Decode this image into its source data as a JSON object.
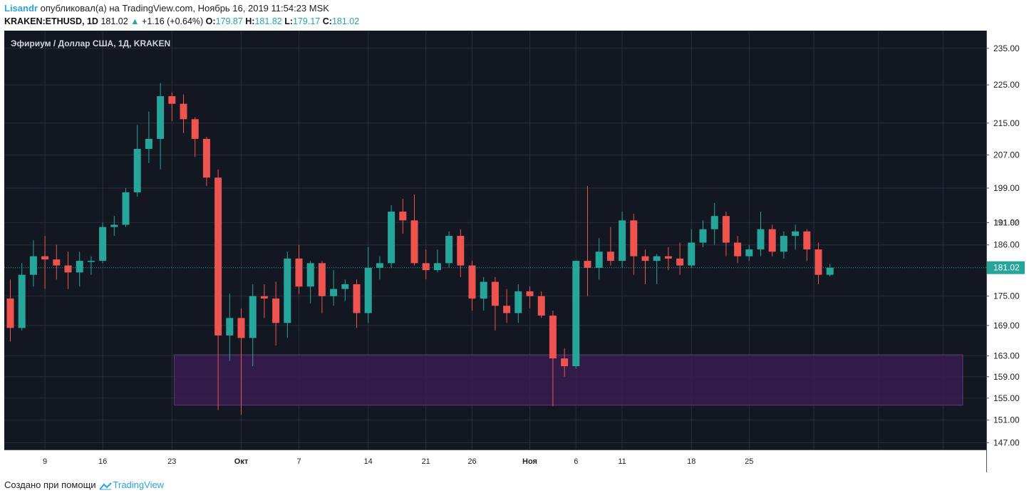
{
  "header": {
    "author": "Lisandr",
    "published_text": "опубликовал(а) на TradingView.com, Ноябрь 16, 2019 11:54:23 MSK",
    "symbol": "KRAKEN:ETHUSD, 1D",
    "last": "181.02",
    "change_arrow": "▲",
    "change": "+1.16 (+0.64%)",
    "o_label": "O:",
    "o_value": "179.87",
    "h_label": "H:",
    "h_value": "181.82",
    "l_label": "L:",
    "l_value": "179.17",
    "c_label": "C:",
    "c_value": "181.02"
  },
  "footer": {
    "created_with": "Создано при помощи",
    "brand": "TradingView"
  },
  "colors": {
    "background": "#131722",
    "grid": "#2a2e39",
    "up": "#26a69a",
    "down": "#ef5350",
    "zone_fill": "#3a1c50",
    "zone_border": "#5c3a78",
    "axis_text": "#d1d4dc",
    "price_line": "#26a69a"
  },
  "chart_data": {
    "type": "candlestick",
    "title": "Эфириум / Доллар США, 1Д, KRAKEN",
    "y_ticks": [
      "235.00",
      "225.00",
      "215.00",
      "207.00",
      "199.00",
      "191.00",
      "186.00",
      "175.00",
      "169.00",
      "163.00",
      "159.00",
      "155.00",
      "151.00",
      "147.00"
    ],
    "y_tick_values": [
      235,
      225,
      215,
      207,
      199,
      191,
      186,
      175,
      169,
      163,
      159,
      155,
      151,
      147
    ],
    "ylim": [
      145.8,
      240
    ],
    "scale": "log",
    "x_ticks": [
      {
        "label": "9",
        "index": 3
      },
      {
        "label": "16",
        "index": 8
      },
      {
        "label": "23",
        "index": 14
      },
      {
        "label": "Окт",
        "index": 20
      },
      {
        "label": "7",
        "index": 25
      },
      {
        "label": "14",
        "index": 31
      },
      {
        "label": "21",
        "index": 36
      },
      {
        "label": "26",
        "index": 40
      },
      {
        "label": "Ноя",
        "index": 45
      },
      {
        "label": "6",
        "index": 49
      },
      {
        "label": "11",
        "index": 53
      },
      {
        "label": "18",
        "index": 59
      },
      {
        "label": "25",
        "index": 64
      }
    ],
    "last_price_label": "181.02",
    "overlap_label": "181.82",
    "last_price": 181.02,
    "zone": {
      "from_index": 14.2,
      "to_index": 82.5,
      "low": 153.7,
      "high": 163.2
    },
    "candles": [
      {
        "o": 174.5,
        "h": 178.5,
        "l": 165.8,
        "c": 168.5
      },
      {
        "o": 168.5,
        "h": 182.0,
        "l": 168.0,
        "c": 179.5
      },
      {
        "o": 179.5,
        "h": 187.0,
        "l": 177.0,
        "c": 183.5
      },
      {
        "o": 183.5,
        "h": 188.0,
        "l": 176.5,
        "c": 182.8
      },
      {
        "o": 182.8,
        "h": 186.0,
        "l": 178.5,
        "c": 181.5
      },
      {
        "o": 181.5,
        "h": 184.5,
        "l": 176.5,
        "c": 180.0
      },
      {
        "o": 180.0,
        "h": 184.5,
        "l": 177.0,
        "c": 182.5
      },
      {
        "o": 182.5,
        "h": 183.5,
        "l": 179.5,
        "c": 182.5
      },
      {
        "o": 182.5,
        "h": 191.0,
        "l": 182.0,
        "c": 190.0
      },
      {
        "o": 190.0,
        "h": 192.5,
        "l": 188.0,
        "c": 190.5
      },
      {
        "o": 190.5,
        "h": 199.0,
        "l": 190.0,
        "c": 198.0
      },
      {
        "o": 198.0,
        "h": 214.5,
        "l": 197.0,
        "c": 208.5
      },
      {
        "o": 208.5,
        "h": 218.0,
        "l": 205.0,
        "c": 211.0
      },
      {
        "o": 211.0,
        "h": 225.5,
        "l": 203.5,
        "c": 222.0
      },
      {
        "o": 222.0,
        "h": 223.0,
        "l": 215.5,
        "c": 220.0
      },
      {
        "o": 220.0,
        "h": 222.5,
        "l": 212.5,
        "c": 216.0
      },
      {
        "o": 216.0,
        "h": 216.5,
        "l": 206.5,
        "c": 211.0
      },
      {
        "o": 211.0,
        "h": 211.5,
        "l": 199.5,
        "c": 201.5
      },
      {
        "o": 201.5,
        "h": 203.5,
        "l": 152.8,
        "c": 167.0
      },
      {
        "o": 167.0,
        "h": 175.5,
        "l": 162.0,
        "c": 170.5
      },
      {
        "o": 170.5,
        "h": 172.5,
        "l": 152.0,
        "c": 166.5
      },
      {
        "o": 166.5,
        "h": 177.5,
        "l": 161.0,
        "c": 175.0
      },
      {
        "o": 175.0,
        "h": 177.5,
        "l": 170.5,
        "c": 174.5
      },
      {
        "o": 174.5,
        "h": 178.0,
        "l": 165.0,
        "c": 169.5
      },
      {
        "o": 169.5,
        "h": 184.5,
        "l": 166.5,
        "c": 183.0
      },
      {
        "o": 183.0,
        "h": 186.0,
        "l": 175.5,
        "c": 177.0
      },
      {
        "o": 177.0,
        "h": 182.5,
        "l": 173.5,
        "c": 182.0
      },
      {
        "o": 182.0,
        "h": 182.5,
        "l": 171.5,
        "c": 175.0
      },
      {
        "o": 175.0,
        "h": 180.5,
        "l": 173.0,
        "c": 176.5
      },
      {
        "o": 176.5,
        "h": 178.5,
        "l": 174.0,
        "c": 177.5
      },
      {
        "o": 177.5,
        "h": 178.5,
        "l": 168.5,
        "c": 171.5
      },
      {
        "o": 171.5,
        "h": 185.5,
        "l": 169.5,
        "c": 181.0
      },
      {
        "o": 181.0,
        "h": 183.5,
        "l": 178.5,
        "c": 182.0
      },
      {
        "o": 182.0,
        "h": 195.0,
        "l": 181.0,
        "c": 193.5
      },
      {
        "o": 193.5,
        "h": 196.5,
        "l": 188.5,
        "c": 191.5
      },
      {
        "o": 191.5,
        "h": 197.5,
        "l": 181.5,
        "c": 182.0
      },
      {
        "o": 182.0,
        "h": 185.0,
        "l": 178.5,
        "c": 180.5
      },
      {
        "o": 180.5,
        "h": 185.0,
        "l": 180.0,
        "c": 182.0
      },
      {
        "o": 182.0,
        "h": 189.0,
        "l": 181.0,
        "c": 188.0
      },
      {
        "o": 188.0,
        "h": 189.5,
        "l": 179.0,
        "c": 181.5
      },
      {
        "o": 181.5,
        "h": 182.5,
        "l": 172.0,
        "c": 174.5
      },
      {
        "o": 174.5,
        "h": 179.0,
        "l": 172.0,
        "c": 178.0
      },
      {
        "o": 178.0,
        "h": 179.0,
        "l": 168.0,
        "c": 173.0
      },
      {
        "o": 173.0,
        "h": 176.5,
        "l": 169.5,
        "c": 171.5
      },
      {
        "o": 171.5,
        "h": 177.5,
        "l": 169.5,
        "c": 176.0
      },
      {
        "o": 176.0,
        "h": 177.0,
        "l": 172.5,
        "c": 175.0
      },
      {
        "o": 175.0,
        "h": 176.0,
        "l": 170.5,
        "c": 171.0
      },
      {
        "o": 171.0,
        "h": 172.0,
        "l": 153.5,
        "c": 162.5
      },
      {
        "o": 162.5,
        "h": 164.5,
        "l": 159.0,
        "c": 161.0
      },
      {
        "o": 161.0,
        "h": 182.5,
        "l": 160.5,
        "c": 182.5
      },
      {
        "o": 182.5,
        "h": 199.5,
        "l": 175.0,
        "c": 181.0
      },
      {
        "o": 181.0,
        "h": 187.5,
        "l": 178.5,
        "c": 184.5
      },
      {
        "o": 184.5,
        "h": 190.0,
        "l": 181.5,
        "c": 182.5
      },
      {
        "o": 182.5,
        "h": 193.5,
        "l": 181.0,
        "c": 191.5
      },
      {
        "o": 191.5,
        "h": 193.0,
        "l": 179.5,
        "c": 183.5
      },
      {
        "o": 183.5,
        "h": 185.0,
        "l": 177.5,
        "c": 182.5
      },
      {
        "o": 182.5,
        "h": 184.0,
        "l": 177.5,
        "c": 183.5
      },
      {
        "o": 183.5,
        "h": 185.5,
        "l": 180.5,
        "c": 183.0
      },
      {
        "o": 183.0,
        "h": 186.5,
        "l": 179.5,
        "c": 181.5
      },
      {
        "o": 181.5,
        "h": 189.5,
        "l": 181.0,
        "c": 186.5
      },
      {
        "o": 186.5,
        "h": 191.5,
        "l": 185.5,
        "c": 189.5
      },
      {
        "o": 189.5,
        "h": 195.5,
        "l": 186.0,
        "c": 192.5
      },
      {
        "o": 192.5,
        "h": 193.5,
        "l": 183.5,
        "c": 186.5
      },
      {
        "o": 186.5,
        "h": 188.0,
        "l": 182.0,
        "c": 183.5
      },
      {
        "o": 183.5,
        "h": 186.0,
        "l": 182.5,
        "c": 185.0
      },
      {
        "o": 185.0,
        "h": 193.5,
        "l": 183.5,
        "c": 189.5
      },
      {
        "o": 189.5,
        "h": 190.5,
        "l": 183.5,
        "c": 184.5
      },
      {
        "o": 184.5,
        "h": 189.0,
        "l": 183.0,
        "c": 188.0
      },
      {
        "o": 188.0,
        "h": 190.5,
        "l": 185.0,
        "c": 189.0
      },
      {
        "o": 189.0,
        "h": 189.5,
        "l": 182.5,
        "c": 185.0
      },
      {
        "o": 185.0,
        "h": 186.5,
        "l": 177.5,
        "c": 179.5
      },
      {
        "o": 179.5,
        "h": 181.82,
        "l": 179.17,
        "c": 181.02
      }
    ]
  }
}
